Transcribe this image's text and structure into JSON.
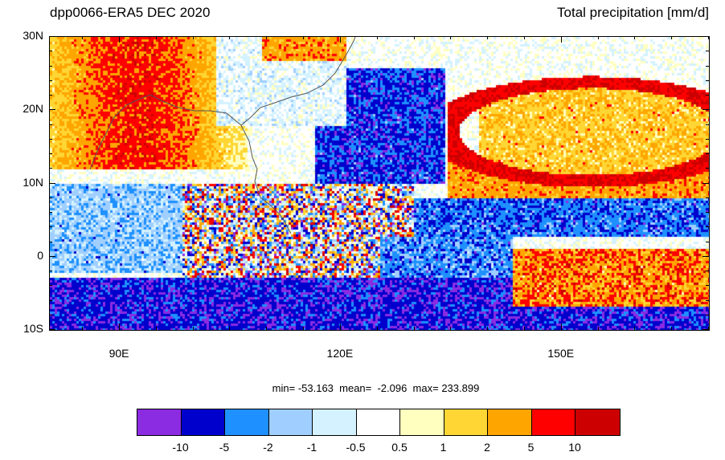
{
  "header": {
    "title_left": "dpp0066-ERA5 DEC 2020",
    "title_right": "Total precipitation [mm/d]"
  },
  "map": {
    "projection": "cylindrical-equidistant",
    "lon_range": [
      80.5,
      170
    ],
    "lat_range": [
      -10,
      30
    ],
    "coastline_color": "#555555",
    "lat_ticks": [
      {
        "value": 30,
        "label": "30N"
      },
      {
        "value": 20,
        "label": "20N"
      },
      {
        "value": 10,
        "label": "10N"
      },
      {
        "value": 0,
        "label": "0"
      },
      {
        "value": -10,
        "label": "10S"
      }
    ],
    "lon_ticks": [
      {
        "value": 90,
        "label": "90E"
      },
      {
        "value": 120,
        "label": "120E"
      },
      {
        "value": 150,
        "label": "150E"
      }
    ]
  },
  "stats": {
    "text": "min= -53.163  mean=  -2.096  max= 233.899"
  },
  "colorbar": {
    "colors": [
      "#8b2be2",
      "#0000cd",
      "#1e90ff",
      "#a0cfff",
      "#d4f2ff",
      "#ffffff",
      "#ffffc0",
      "#ffd633",
      "#ffa500",
      "#ff0000",
      "#cc0000"
    ],
    "labels": [
      "-10",
      "-5",
      "-2",
      "-1",
      "-0.5",
      "0.5",
      "1",
      "2",
      "5",
      "10"
    ]
  }
}
